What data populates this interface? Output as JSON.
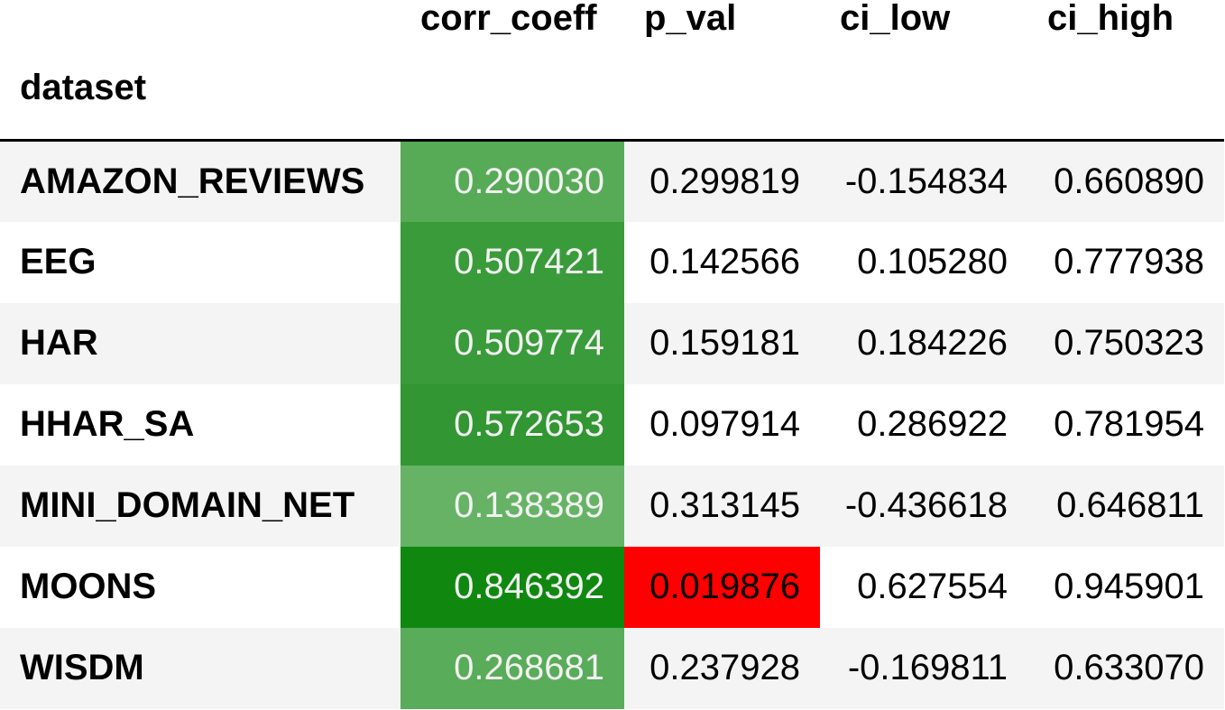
{
  "table": {
    "columns": [
      "corr_coeff",
      "p_val",
      "ci_low",
      "ci_high"
    ],
    "index_name": "dataset",
    "rows": [
      {
        "dataset": "AMAZON_REVIEWS",
        "corr_coeff": "0.290030",
        "p_val": "0.299819",
        "ci_low": "-0.154834",
        "ci_high": "0.660890",
        "corr_bg": "#57ab57",
        "corr_fg": "#f1f1f1",
        "pval_highlight": false
      },
      {
        "dataset": "EEG",
        "corr_coeff": "0.507421",
        "p_val": "0.142566",
        "ci_low": "0.105280",
        "ci_high": "0.777938",
        "corr_bg": "#3a9b3a",
        "corr_fg": "#f1f1f1",
        "pval_highlight": false
      },
      {
        "dataset": "HAR",
        "corr_coeff": "0.509774",
        "p_val": "0.159181",
        "ci_low": "0.184226",
        "ci_high": "0.750323",
        "corr_bg": "#3a9b3a",
        "corr_fg": "#f1f1f1",
        "pval_highlight": false
      },
      {
        "dataset": "HHAR_SA",
        "corr_coeff": "0.572653",
        "p_val": "0.097914",
        "ci_low": "0.286922",
        "ci_high": "0.781954",
        "corr_bg": "#329632",
        "corr_fg": "#f1f1f1",
        "pval_highlight": false
      },
      {
        "dataset": "MINI_DOMAIN_NET",
        "corr_coeff": "0.138389",
        "p_val": "0.313145",
        "ci_low": "-0.436618",
        "ci_high": "0.646811",
        "corr_bg": "#66b366",
        "corr_fg": "#f1f1f1",
        "pval_highlight": false
      },
      {
        "dataset": "MOONS",
        "corr_coeff": "0.846392",
        "p_val": "0.019876",
        "ci_low": "0.627554",
        "ci_high": "0.945901",
        "corr_bg": "#108810",
        "corr_fg": "#f1f1f1",
        "pval_highlight": true
      },
      {
        "dataset": "WISDM",
        "corr_coeff": "0.268681",
        "p_val": "0.237928",
        "ci_low": "-0.169811",
        "ci_high": "0.633070",
        "corr_bg": "#59ac59",
        "corr_fg": "#f1f1f1",
        "pval_highlight": false
      }
    ]
  }
}
